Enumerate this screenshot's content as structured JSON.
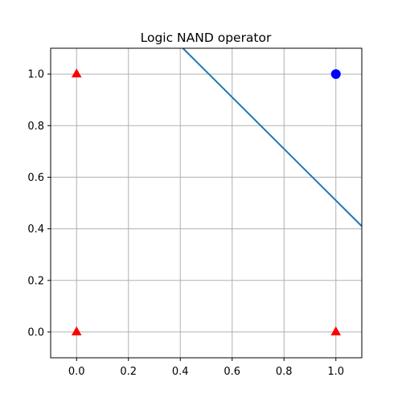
{
  "chart_data": {
    "type": "scatter",
    "title": "Logic NAND operator",
    "xlabel": "",
    "ylabel": "",
    "xlim": [
      -0.1,
      1.1
    ],
    "ylim": [
      -0.1,
      1.1
    ],
    "grid": true,
    "xticks": [
      0.0,
      0.2,
      0.4,
      0.6,
      0.8,
      1.0
    ],
    "yticks": [
      0.0,
      0.2,
      0.4,
      0.6,
      0.8,
      1.0
    ],
    "xtick_labels": [
      "0.0",
      "0.2",
      "0.4",
      "0.6",
      "0.8",
      "1.0"
    ],
    "ytick_labels": [
      "0.0",
      "0.2",
      "0.4",
      "0.6",
      "0.8",
      "1.0"
    ],
    "series": [
      {
        "marker": "triangle",
        "color": "#ff0000",
        "points": [
          {
            "x": 0.0,
            "y": 1.0
          },
          {
            "x": 0.0,
            "y": 0.0
          },
          {
            "x": 1.0,
            "y": 0.0
          }
        ]
      },
      {
        "marker": "circle",
        "color": "#0000ff",
        "points": [
          {
            "x": 1.0,
            "y": 1.0
          }
        ]
      }
    ],
    "line": {
      "color": "#1f77b4",
      "points": [
        {
          "x": 0.41,
          "y": 1.1
        },
        {
          "x": 1.1,
          "y": 0.41
        }
      ]
    }
  }
}
